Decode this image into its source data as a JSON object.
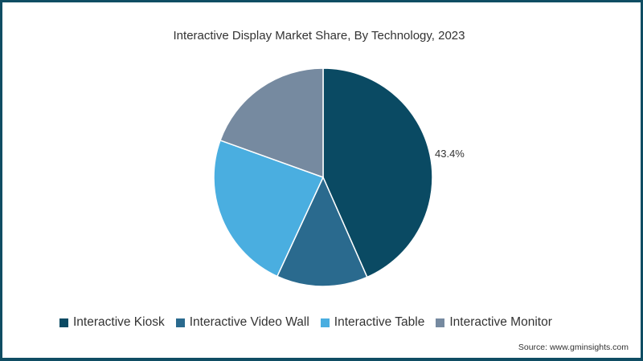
{
  "chart_data": {
    "type": "pie",
    "title": "Interactive Display Market Share, By Technology, 2023",
    "categories": [
      "Interactive Kiosk",
      "Interactive Video Wall",
      "Interactive Table",
      "Interactive Monitor"
    ],
    "values": [
      43.4,
      13.5,
      23.6,
      19.5
    ],
    "colors": [
      "#0a4a63",
      "#2a6a8e",
      "#4aaee0",
      "#768aa0"
    ],
    "data_labels": [
      {
        "category": "Interactive Kiosk",
        "label": "43.4%"
      }
    ],
    "legend_position": "bottom",
    "start_angle": 90,
    "direction": "clockwise"
  },
  "title": "Interactive Display Market Share, By Technology, 2023",
  "label_kiosk": "43.4%",
  "legend": [
    {
      "label": "Interactive Kiosk",
      "color": "#0a4a63"
    },
    {
      "label": "Interactive Video Wall",
      "color": "#2a6a8e"
    },
    {
      "label": "Interactive Table",
      "color": "#4aaee0"
    },
    {
      "label": "Interactive Monitor",
      "color": "#768aa0"
    }
  ],
  "source": "Source: www.gminsights.com"
}
